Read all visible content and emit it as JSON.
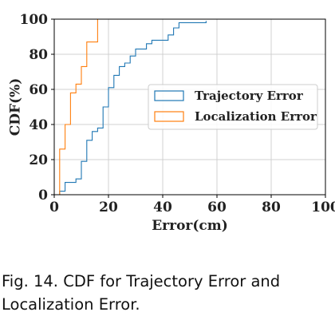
{
  "chart_data": {
    "type": "line",
    "title": "",
    "xlabel": "Error(cm)",
    "ylabel": "CDF(%)",
    "xlim": [
      0,
      100
    ],
    "ylim": [
      0,
      100
    ],
    "x_ticks": [
      0,
      20,
      40,
      60,
      80,
      100
    ],
    "y_ticks": [
      0,
      20,
      40,
      60,
      80,
      100
    ],
    "grid": true,
    "legend_position": "right",
    "series": [
      {
        "name": "Trajectory Error",
        "color": "#1f77b4",
        "step": true,
        "x": [
          2,
          4,
          8,
          10,
          12,
          14,
          16,
          18,
          20,
          22,
          24,
          26,
          28,
          30,
          34,
          36,
          42,
          44,
          46,
          56
        ],
        "y": [
          2,
          7,
          9,
          19,
          31,
          36,
          38,
          50,
          61,
          68,
          73,
          75,
          79,
          83,
          86,
          88,
          91,
          95,
          98,
          99
        ]
      },
      {
        "name": "Localization Error",
        "color": "#ff7f0e",
        "step": true,
        "x": [
          2,
          4,
          6,
          8,
          10,
          12,
          16
        ],
        "y": [
          26,
          40,
          58,
          63,
          73,
          87,
          100
        ]
      }
    ]
  },
  "caption": {
    "line1": "Fig. 14.  CDF for Trajectory Error and",
    "line2": "Localization Error."
  }
}
